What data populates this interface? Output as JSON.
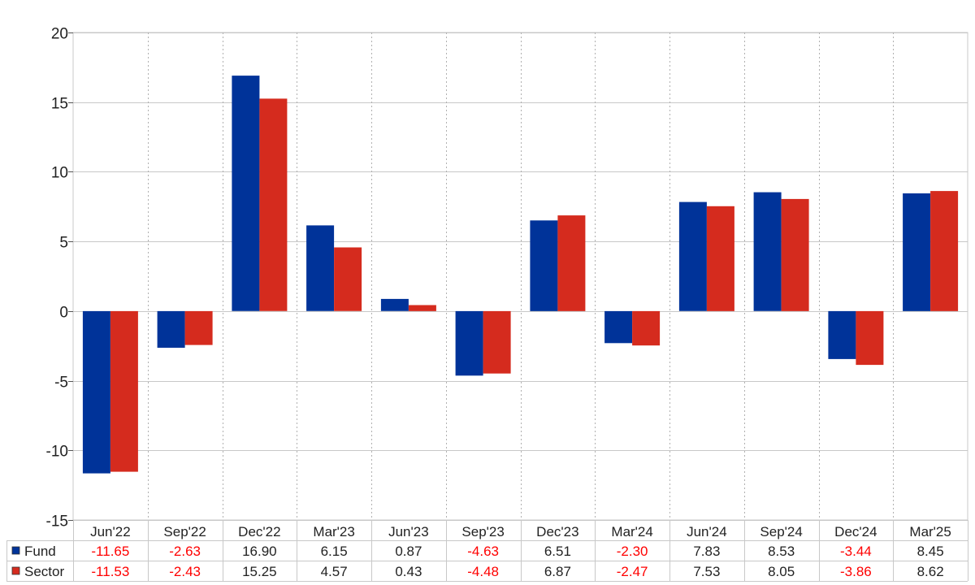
{
  "chart_data": {
    "type": "bar",
    "categories": [
      "Jun'22",
      "Sep'22",
      "Dec'22",
      "Mar'23",
      "Jun'23",
      "Sep'23",
      "Dec'23",
      "Mar'24",
      "Jun'24",
      "Sep'24",
      "Dec'24",
      "Mar'25"
    ],
    "series": [
      {
        "name": "Fund",
        "color": "#003399",
        "values": [
          -11.65,
          -2.63,
          16.9,
          6.15,
          0.87,
          -4.63,
          6.51,
          -2.3,
          7.83,
          8.53,
          -3.44,
          8.45
        ],
        "labels": [
          "-11.65",
          "-2.63",
          "16.90",
          "6.15",
          "0.87",
          "-4.63",
          "6.51",
          "-2.30",
          "7.83",
          "8.53",
          "-3.44",
          "8.45"
        ]
      },
      {
        "name": "Sector",
        "color": "#d52b1e",
        "values": [
          -11.53,
          -2.43,
          15.25,
          4.57,
          0.43,
          -4.48,
          6.87,
          -2.47,
          7.53,
          8.05,
          -3.86,
          8.62
        ],
        "labels": [
          "-11.53",
          "-2.43",
          "15.25",
          "4.57",
          "0.43",
          "-4.48",
          "6.87",
          "-2.47",
          "7.53",
          "8.05",
          "-3.86",
          "8.62"
        ]
      }
    ],
    "yticks": [
      "20",
      "15",
      "10",
      "5",
      "0",
      "-5",
      "-10",
      "-15"
    ],
    "ylim": [
      -15,
      20
    ],
    "negative_value_color": "#ff0000",
    "grid": true,
    "legend": "data-table-left"
  }
}
